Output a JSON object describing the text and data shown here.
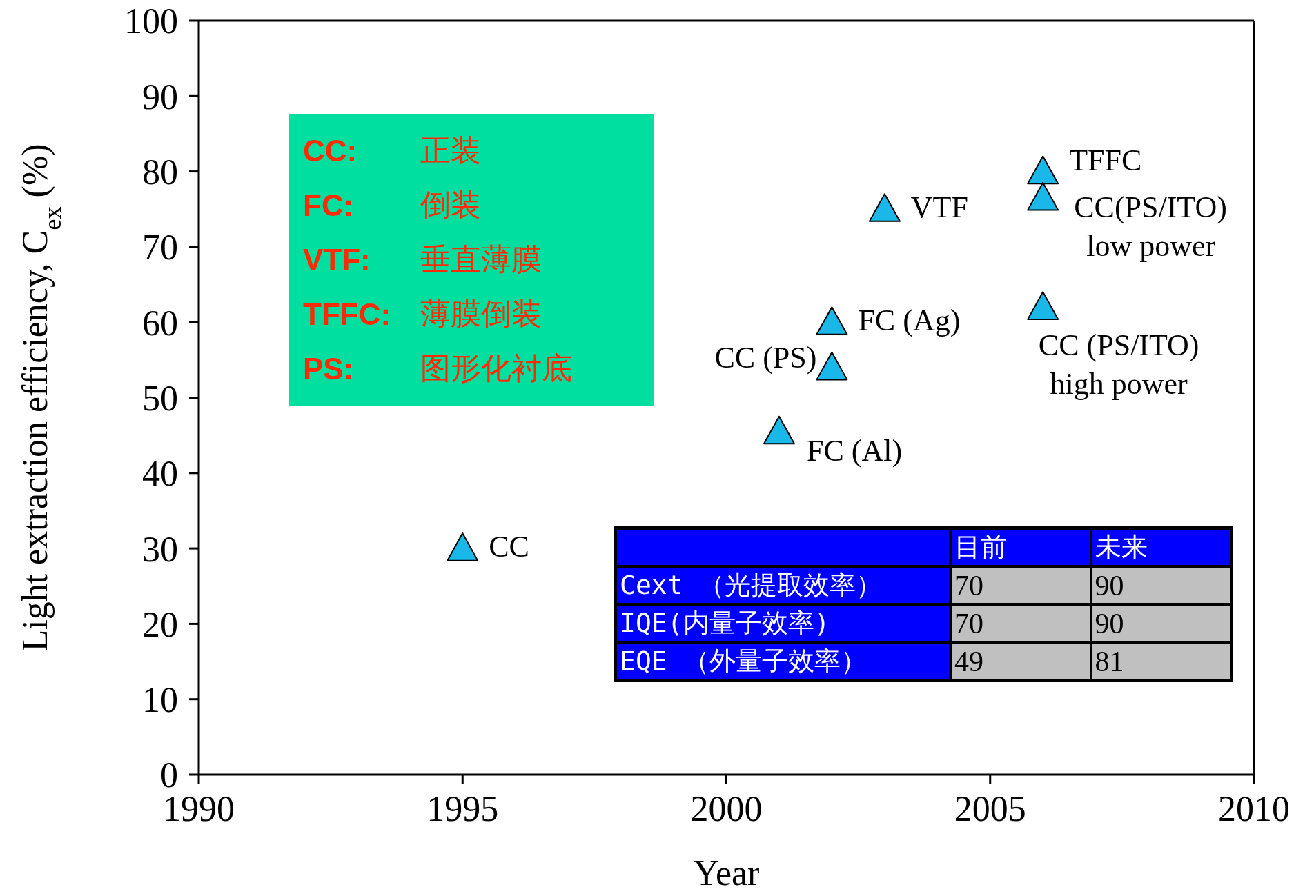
{
  "chart_data": {
    "type": "scatter",
    "xlabel": "Year",
    "ylabel": "Light extraction efficiency, C$_{ex}$ (%)",
    "x": [
      1995,
      2001,
      2002,
      2002,
      2003,
      2006,
      2006,
      2006
    ],
    "series": [
      {
        "color": "#1ab8e8",
        "values": [
          30,
          45.5,
          54,
          60,
          75,
          80,
          76.5,
          62
        ]
      }
    ],
    "xlim": [
      1990,
      2010
    ],
    "xticks": [
      1990,
      1995,
      2000,
      2005,
      2010
    ],
    "ylim": [
      0,
      100
    ],
    "yticks": [
      0,
      10,
      20,
      30,
      40,
      50,
      60,
      70,
      80,
      90,
      100
    ],
    "grid": false,
    "legend": false,
    "marker": "triangle",
    "annotations": [
      {
        "text": "CC",
        "x": 1995,
        "y": 30
      },
      {
        "text": "FC (Al)",
        "x": 2001,
        "y": 45.5
      },
      {
        "text": "CC (PS)",
        "x": 2002,
        "y": 54
      },
      {
        "text": "FC (Ag)",
        "x": 2002,
        "y": 60
      },
      {
        "text": "VTF",
        "x": 2003,
        "y": 75
      },
      {
        "text": "TFFC",
        "x": 2006,
        "y": 80
      },
      {
        "text": "CC(PS/ITO)\nlow power",
        "x": 2006,
        "y": 76.5
      },
      {
        "text": "CC (PS/ITO)\nhigh power",
        "x": 2006,
        "y": 62
      },
      "CC: 正装",
      "FC: 倒装",
      "VTF: 垂直薄膜",
      "TFFC: 薄膜倒装",
      "PS: 图形化衬底",
      "目前",
      "未来",
      "Cext （光提取效率）",
      "70",
      "90",
      "IQE(内量子效率)",
      "70",
      "90",
      "EQE （外量子效率）",
      "49",
      "81"
    ]
  }
}
